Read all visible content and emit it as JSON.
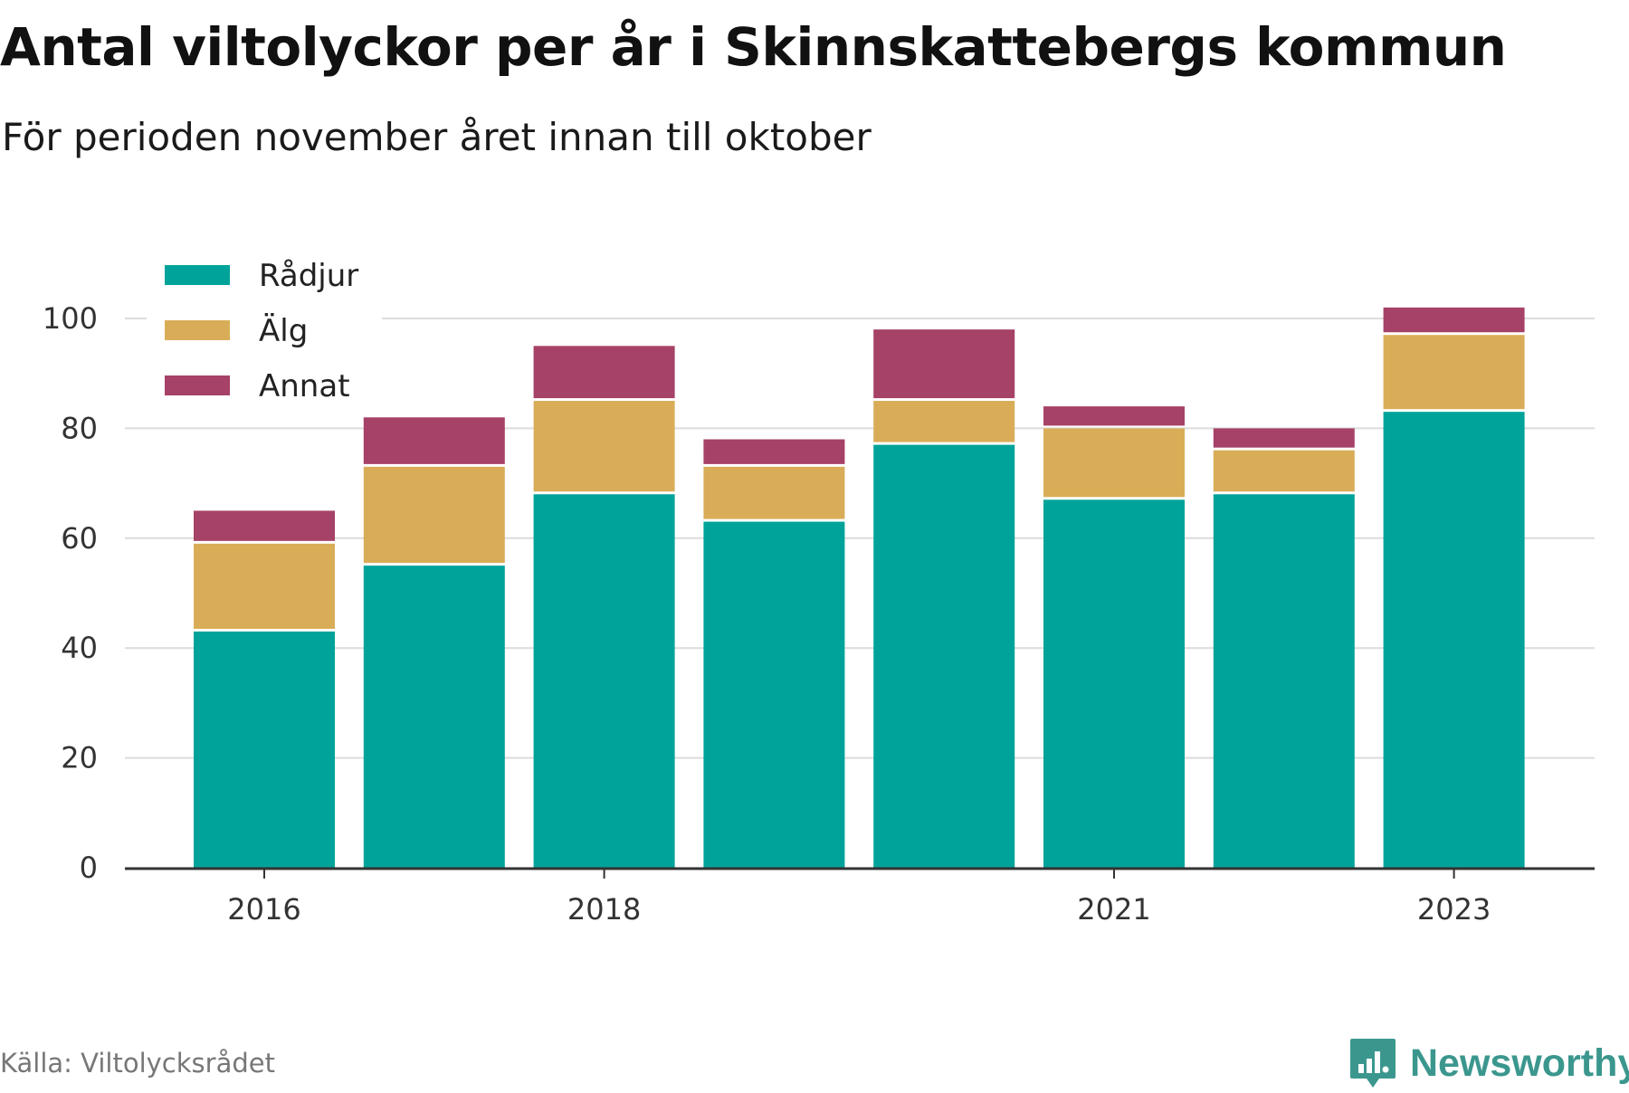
{
  "title": "Antal viltolyckor per år i Skinnskattebergs kommun",
  "subtitle": "För perioden november året innan till oktober",
  "source": "Källa: Viltolycksrådet",
  "logo": {
    "text": "Newsworthy",
    "icon": "newsworthy-logo-icon",
    "color": "#3b978e"
  },
  "chart_data": {
    "type": "bar",
    "stacked": true,
    "categories": [
      "2016",
      "2017",
      "2018",
      "2019",
      "2020",
      "2021",
      "2022",
      "2023"
    ],
    "x_tick_labels": [
      "2016",
      "2018",
      "2021",
      "2023"
    ],
    "series": [
      {
        "name": "Rådjur",
        "color": "#00a39a",
        "values": [
          43,
          55,
          68,
          63,
          77,
          67,
          68,
          83
        ]
      },
      {
        "name": "Älg",
        "color": "#d9ad58",
        "values": [
          16,
          18,
          17,
          10,
          8,
          13,
          8,
          14
        ]
      },
      {
        "name": "Annat",
        "color": "#a64167",
        "values": [
          6,
          9,
          10,
          5,
          13,
          4,
          4,
          5
        ]
      }
    ],
    "ylim": [
      0,
      100
    ],
    "yticks": [
      0,
      20,
      40,
      60,
      80,
      100
    ],
    "grid": true,
    "legend_position": "top-left",
    "xlabel": "",
    "ylabel": ""
  }
}
